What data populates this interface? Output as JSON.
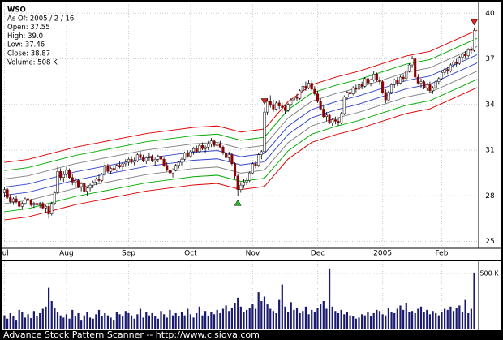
{
  "chart_data": {
    "type": "candlestick",
    "info": [
      "WSO",
      "As Of: 2005 / 2 / 16",
      "Open: 37.55",
      "High: 39.0",
      "Low: 37.46",
      "Close: 38.87",
      "Volume: 508 K"
    ],
    "footer": "Advance Stock Pattern Scanner -- http://www.cisiova.com",
    "xlim": [
      -1.5,
      160.5
    ],
    "xticks": [
      {
        "value": 0,
        "label": "Jul"
      },
      {
        "value": 21,
        "label": "Aug"
      },
      {
        "value": 42,
        "label": "Sep"
      },
      {
        "value": 63,
        "label": "Oct"
      },
      {
        "value": 84,
        "label": "Nov"
      },
      {
        "value": 106,
        "label": "Dec"
      },
      {
        "value": 128,
        "label": "2005"
      },
      {
        "value": 148,
        "label": "Feb"
      }
    ],
    "ylim": [
      24.6,
      40.6
    ],
    "yticks": [
      25,
      28,
      31,
      34,
      37,
      40
    ],
    "grid": true,
    "up_color": "#ffffff",
    "down_color": "#8b0000",
    "ohlc": [
      [
        28.2,
        28.6,
        27.9,
        28.4
      ],
      [
        28.4,
        28.5,
        27.8,
        27.9
      ],
      [
        27.9,
        28.1,
        27.5,
        27.6
      ],
      [
        27.6,
        27.9,
        27.4,
        27.8
      ],
      [
        27.8,
        28.0,
        27.5,
        27.6
      ],
      [
        27.6,
        27.8,
        27.2,
        27.3
      ],
      [
        27.3,
        27.6,
        27.1,
        27.5
      ],
      [
        27.5,
        27.9,
        27.4,
        27.8
      ],
      [
        27.8,
        28.0,
        27.6,
        27.7
      ],
      [
        27.7,
        27.8,
        27.3,
        27.4
      ],
      [
        27.4,
        27.6,
        27.2,
        27.5
      ],
      [
        27.5,
        27.7,
        27.3,
        27.4
      ],
      [
        27.4,
        27.6,
        27.2,
        27.5
      ],
      [
        27.5,
        27.6,
        27.1,
        27.2
      ],
      [
        27.2,
        27.4,
        26.9,
        27.3
      ],
      [
        27.3,
        27.5,
        26.5,
        26.8
      ],
      [
        26.8,
        27.6,
        26.7,
        27.5
      ],
      [
        27.5,
        28.3,
        27.4,
        28.2
      ],
      [
        28.2,
        29.9,
        28.1,
        29.6
      ],
      [
        29.6,
        29.8,
        29.0,
        29.2
      ],
      [
        29.2,
        29.6,
        28.9,
        29.4
      ],
      [
        29.4,
        29.9,
        29.2,
        29.7
      ],
      [
        29.7,
        29.8,
        29.1,
        29.2
      ],
      [
        29.2,
        29.4,
        28.7,
        28.9
      ],
      [
        28.9,
        29.2,
        28.6,
        29.0
      ],
      [
        29.0,
        29.1,
        28.5,
        28.6
      ],
      [
        28.6,
        28.9,
        28.3,
        28.8
      ],
      [
        28.8,
        28.9,
        28.2,
        28.3
      ],
      [
        28.3,
        28.6,
        28.0,
        28.5
      ],
      [
        28.5,
        28.8,
        28.3,
        28.7
      ],
      [
        28.7,
        29.0,
        28.5,
        28.9
      ],
      [
        28.9,
        29.2,
        28.7,
        29.1
      ],
      [
        29.1,
        29.4,
        28.9,
        29.0
      ],
      [
        29.0,
        29.5,
        28.9,
        29.4
      ],
      [
        29.4,
        30.2,
        29.3,
        30.0
      ],
      [
        30.0,
        30.1,
        29.5,
        29.6
      ],
      [
        29.6,
        29.9,
        29.4,
        29.8
      ],
      [
        29.8,
        30.0,
        29.6,
        29.7
      ],
      [
        29.7,
        30.1,
        29.6,
        30.0
      ],
      [
        30.0,
        30.3,
        29.8,
        29.9
      ],
      [
        29.9,
        30.2,
        29.7,
        30.1
      ],
      [
        30.1,
        30.4,
        29.9,
        30.2
      ],
      [
        30.2,
        30.5,
        30.0,
        30.4
      ],
      [
        30.4,
        30.6,
        30.1,
        30.2
      ],
      [
        30.2,
        30.5,
        30.0,
        30.3
      ],
      [
        30.3,
        30.8,
        30.2,
        30.7
      ],
      [
        30.7,
        30.9,
        30.4,
        30.5
      ],
      [
        30.5,
        30.7,
        30.2,
        30.3
      ],
      [
        30.3,
        30.6,
        30.1,
        30.5
      ],
      [
        30.5,
        30.8,
        30.3,
        30.6
      ],
      [
        30.6,
        30.7,
        30.2,
        30.3
      ],
      [
        30.3,
        30.5,
        30.0,
        30.4
      ],
      [
        30.4,
        30.7,
        30.2,
        30.6
      ],
      [
        30.6,
        30.8,
        30.3,
        30.4
      ],
      [
        30.4,
        30.5,
        29.9,
        30.0
      ],
      [
        30.0,
        30.2,
        29.6,
        29.7
      ],
      [
        29.7,
        29.9,
        29.3,
        29.5
      ],
      [
        29.5,
        29.8,
        29.2,
        29.7
      ],
      [
        29.7,
        30.1,
        29.6,
        30.0
      ],
      [
        30.0,
        30.3,
        29.8,
        30.2
      ],
      [
        30.2,
        30.5,
        30.0,
        30.4
      ],
      [
        30.4,
        30.9,
        30.3,
        30.8
      ],
      [
        30.8,
        31.0,
        30.5,
        30.6
      ],
      [
        30.6,
        31.0,
        30.5,
        30.9
      ],
      [
        30.9,
        31.2,
        30.7,
        31.1
      ],
      [
        31.1,
        31.3,
        30.8,
        30.9
      ],
      [
        30.9,
        31.4,
        30.8,
        31.3
      ],
      [
        31.3,
        31.5,
        31.0,
        31.1
      ],
      [
        31.1,
        31.3,
        30.8,
        31.2
      ],
      [
        31.2,
        31.6,
        31.0,
        31.4
      ],
      [
        31.4,
        31.8,
        31.2,
        31.6
      ],
      [
        31.6,
        31.7,
        31.2,
        31.3
      ],
      [
        31.3,
        31.5,
        31.0,
        31.4
      ],
      [
        31.4,
        31.6,
        31.1,
        31.2
      ],
      [
        31.2,
        31.3,
        30.7,
        30.8
      ],
      [
        30.8,
        31.0,
        30.4,
        30.5
      ],
      [
        30.5,
        30.9,
        30.3,
        30.7
      ],
      [
        30.7,
        30.8,
        30.0,
        30.1
      ],
      [
        30.1,
        30.2,
        29.1,
        29.3
      ],
      [
        29.3,
        29.4,
        28.0,
        28.4
      ],
      [
        28.4,
        28.9,
        28.2,
        28.7
      ],
      [
        28.7,
        29.1,
        28.5,
        28.9
      ],
      [
        28.9,
        29.2,
        28.7,
        29.0
      ],
      [
        29.0,
        29.6,
        28.9,
        29.5
      ],
      [
        29.5,
        30.2,
        29.4,
        30.1
      ],
      [
        30.1,
        30.3,
        29.8,
        30.0
      ],
      [
        30.0,
        30.8,
        29.9,
        30.7
      ],
      [
        30.7,
        31.0,
        30.4,
        30.9
      ],
      [
        30.9,
        33.8,
        30.8,
        33.5
      ],
      [
        33.5,
        34.4,
        33.3,
        34.2
      ],
      [
        34.2,
        34.6,
        33.8,
        34.0
      ],
      [
        34.0,
        34.3,
        33.5,
        33.7
      ],
      [
        33.7,
        34.2,
        33.6,
        34.1
      ],
      [
        34.1,
        34.3,
        33.7,
        33.9
      ],
      [
        33.9,
        34.1,
        33.5,
        33.8
      ],
      [
        33.8,
        34.0,
        33.4,
        33.6
      ],
      [
        33.6,
        34.1,
        33.5,
        34.0
      ],
      [
        34.0,
        34.4,
        33.9,
        34.3
      ],
      [
        34.3,
        34.6,
        34.1,
        34.5
      ],
      [
        34.5,
        34.7,
        34.2,
        34.4
      ],
      [
        34.4,
        35.0,
        34.3,
        34.9
      ],
      [
        34.9,
        35.4,
        34.8,
        35.2
      ],
      [
        35.2,
        35.5,
        34.9,
        35.1
      ],
      [
        35.1,
        35.6,
        35.0,
        35.4
      ],
      [
        35.4,
        35.6,
        34.9,
        35.0
      ],
      [
        35.0,
        35.2,
        34.6,
        34.7
      ],
      [
        34.7,
        34.9,
        34.1,
        34.2
      ],
      [
        34.2,
        34.4,
        33.6,
        33.7
      ],
      [
        33.7,
        33.9,
        33.1,
        33.2
      ],
      [
        33.2,
        33.5,
        32.9,
        33.3
      ],
      [
        33.3,
        33.4,
        32.7,
        32.8
      ],
      [
        32.8,
        33.1,
        32.6,
        33.0
      ],
      [
        33.0,
        33.2,
        32.7,
        32.9
      ],
      [
        32.9,
        33.1,
        32.6,
        32.8
      ],
      [
        32.8,
        33.5,
        32.7,
        33.4
      ],
      [
        33.4,
        34.6,
        33.3,
        34.5
      ],
      [
        34.5,
        34.9,
        34.3,
        34.8
      ],
      [
        34.8,
        35.0,
        34.5,
        34.7
      ],
      [
        34.7,
        35.2,
        34.6,
        35.1
      ],
      [
        35.1,
        35.3,
        34.8,
        35.0
      ],
      [
        35.0,
        35.4,
        34.9,
        35.3
      ],
      [
        35.3,
        35.5,
        35.0,
        35.2
      ],
      [
        35.2,
        35.8,
        35.1,
        35.7
      ],
      [
        35.7,
        35.9,
        35.3,
        35.4
      ],
      [
        35.4,
        35.7,
        35.2,
        35.6
      ],
      [
        35.6,
        36.2,
        35.5,
        36.0
      ],
      [
        36.0,
        36.1,
        35.5,
        35.6
      ],
      [
        35.6,
        35.8,
        35.3,
        35.5
      ],
      [
        35.5,
        35.6,
        34.7,
        34.8
      ],
      [
        34.8,
        35.0,
        34.1,
        34.3
      ],
      [
        34.3,
        34.9,
        34.2,
        34.8
      ],
      [
        34.8,
        35.4,
        34.7,
        35.3
      ],
      [
        35.3,
        35.7,
        35.1,
        35.6
      ],
      [
        35.6,
        35.8,
        35.2,
        35.4
      ],
      [
        35.4,
        35.9,
        35.3,
        35.8
      ],
      [
        35.8,
        36.0,
        35.5,
        35.7
      ],
      [
        35.7,
        36.3,
        35.6,
        36.2
      ],
      [
        36.2,
        36.7,
        36.1,
        36.6
      ],
      [
        36.6,
        37.2,
        36.4,
        37.0
      ],
      [
        37.0,
        37.1,
        35.7,
        35.8
      ],
      [
        35.8,
        36.0,
        35.3,
        35.4
      ],
      [
        35.4,
        35.7,
        35.1,
        35.5
      ],
      [
        35.5,
        35.6,
        35.0,
        35.1
      ],
      [
        35.1,
        35.4,
        34.9,
        35.3
      ],
      [
        35.3,
        35.5,
        34.8,
        34.9
      ],
      [
        34.9,
        35.2,
        34.7,
        35.1
      ],
      [
        35.1,
        35.6,
        35.0,
        35.5
      ],
      [
        35.5,
        35.8,
        35.3,
        35.7
      ],
      [
        35.7,
        36.2,
        35.6,
        36.1
      ],
      [
        36.1,
        36.4,
        35.9,
        36.3
      ],
      [
        36.3,
        36.5,
        36.0,
        36.2
      ],
      [
        36.2,
        36.7,
        36.1,
        36.6
      ],
      [
        36.6,
        36.9,
        36.4,
        36.8
      ],
      [
        36.8,
        37.0,
        36.5,
        36.7
      ],
      [
        36.7,
        37.2,
        36.6,
        37.1
      ],
      [
        37.1,
        37.4,
        36.9,
        37.3
      ],
      [
        37.3,
        37.5,
        37.0,
        37.2
      ],
      [
        37.2,
        37.7,
        37.1,
        37.6
      ],
      [
        37.6,
        37.8,
        37.3,
        37.55
      ],
      [
        37.55,
        39.0,
        37.46,
        38.87
      ]
    ],
    "band_x": [
      0,
      8,
      16,
      24,
      32,
      40,
      48,
      56,
      64,
      72,
      80,
      88,
      96,
      104,
      112,
      120,
      128,
      136,
      144,
      152,
      160
    ],
    "bands": [
      {
        "color": "#dd0000",
        "values": [
          30.19,
          30.39,
          30.79,
          31.19,
          31.49,
          31.79,
          32.09,
          32.29,
          32.49,
          32.59,
          32.19,
          32.39,
          34.19,
          35.29,
          35.79,
          36.19,
          36.69,
          37.19,
          37.49,
          38.19,
          38.89
        ]
      },
      {
        "color": "#00aa00",
        "values": [
          29.65,
          29.85,
          30.25,
          30.65,
          30.95,
          31.25,
          31.55,
          31.75,
          31.95,
          32.05,
          31.65,
          31.85,
          33.65,
          34.75,
          35.25,
          35.65,
          36.15,
          36.65,
          36.95,
          37.65,
          38.35
        ]
      },
      {
        "color": "#808080",
        "values": [
          29.11,
          29.31,
          29.71,
          30.11,
          30.41,
          30.71,
          31.01,
          31.21,
          31.41,
          31.51,
          31.11,
          31.31,
          33.11,
          34.21,
          34.71,
          35.11,
          35.61,
          36.11,
          36.41,
          37.11,
          37.81
        ]
      },
      {
        "color": "#3344cc",
        "values": [
          28.57,
          28.77,
          29.17,
          29.57,
          29.87,
          30.17,
          30.47,
          30.67,
          30.87,
          30.97,
          30.57,
          30.77,
          32.57,
          33.67,
          34.17,
          34.57,
          35.07,
          35.57,
          35.87,
          36.57,
          37.27
        ]
      },
      {
        "color": "#3344cc",
        "values": [
          28.03,
          28.23,
          28.63,
          29.03,
          29.33,
          29.63,
          29.93,
          30.13,
          30.33,
          30.43,
          30.03,
          30.23,
          32.03,
          33.13,
          33.63,
          34.03,
          34.53,
          35.03,
          35.33,
          36.03,
          36.73
        ]
      },
      {
        "color": "#808080",
        "values": [
          27.49,
          27.69,
          28.09,
          28.49,
          28.79,
          29.09,
          29.39,
          29.59,
          29.79,
          29.89,
          29.49,
          29.69,
          31.49,
          32.59,
          33.09,
          33.49,
          33.99,
          34.49,
          34.79,
          35.49,
          36.19
        ]
      },
      {
        "color": "#00aa00",
        "values": [
          26.95,
          27.15,
          27.55,
          27.95,
          28.25,
          28.55,
          28.85,
          29.05,
          29.25,
          29.35,
          28.95,
          29.15,
          30.95,
          32.05,
          32.55,
          32.95,
          33.45,
          33.95,
          34.25,
          34.95,
          35.65
        ]
      },
      {
        "color": "#dd0000",
        "values": [
          26.41,
          26.61,
          27.01,
          27.41,
          27.71,
          28.01,
          28.31,
          28.51,
          28.71,
          28.81,
          28.41,
          28.61,
          30.41,
          31.51,
          32.01,
          32.41,
          32.91,
          33.41,
          33.71,
          34.41,
          35.11
        ]
      }
    ],
    "signals": [
      {
        "x": 79,
        "kind": "buy",
        "color": "#22bb22"
      },
      {
        "x": 88,
        "kind": "sell",
        "color": "#dd2222"
      },
      {
        "x": 159,
        "kind": "sell",
        "color": "#dd2222"
      }
    ],
    "volume_color": "#1a1a6e",
    "volume_ylim": [
      0,
      610
    ],
    "volume_yticks": [
      {
        "value": 500,
        "label": "500 K"
      }
    ],
    "volume": [
      120,
      90,
      140,
      110,
      80,
      170,
      150,
      100,
      130,
      95,
      160,
      110,
      140,
      180,
      200,
      370,
      250,
      190,
      150,
      120,
      100,
      130,
      90,
      170,
      110,
      140,
      80,
      120,
      150,
      100,
      90,
      130,
      170,
      110,
      140,
      120,
      100,
      80,
      150,
      130,
      110,
      160,
      140,
      120,
      90,
      130,
      180,
      100,
      150,
      120,
      140,
      110,
      90,
      160,
      130,
      100,
      170,
      120,
      140,
      110,
      150,
      120,
      180,
      130,
      100,
      140,
      200,
      120,
      160,
      110,
      150,
      130,
      170,
      140,
      180,
      210,
      160,
      190,
      230,
      280,
      200,
      150,
      170,
      190,
      220,
      180,
      330,
      250,
      290,
      220,
      180,
      160,
      140,
      260,
      400,
      200,
      150,
      240,
      170,
      190,
      140,
      160,
      200,
      130,
      170,
      150,
      190,
      220,
      250,
      180,
      545,
      200,
      160,
      140,
      170,
      130,
      150,
      120,
      110,
      90,
      100,
      130,
      120,
      150,
      110,
      140,
      170,
      160,
      130,
      120,
      190,
      150,
      140,
      180,
      210,
      170,
      230,
      150,
      160,
      140,
      180,
      200,
      150,
      170,
      130,
      160,
      140,
      120,
      150,
      180,
      170,
      200,
      160,
      190,
      210,
      150,
      260,
      140,
      180,
      508
    ]
  }
}
